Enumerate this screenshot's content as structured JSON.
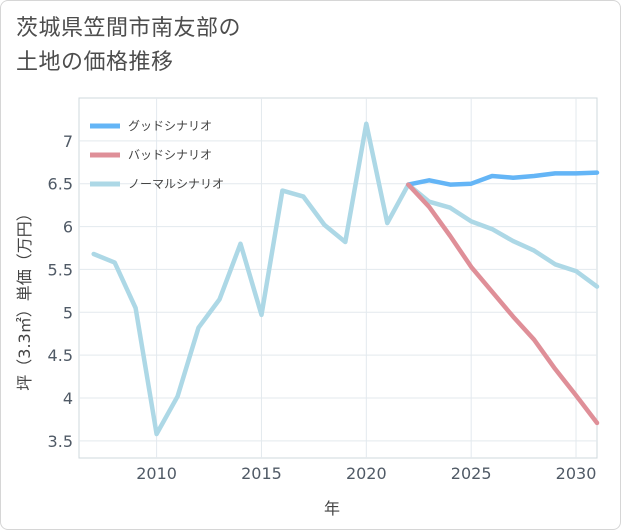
{
  "title_lines": [
    "茨城県笠間市南友部の",
    "土地の価格推移"
  ],
  "chart_data": {
    "type": "line",
    "xlabel": "年",
    "ylabel": "坪（3.3㎡）単価（万円）",
    "xlim": [
      2006.3,
      2031
    ],
    "ylim": [
      3.3,
      7.5
    ],
    "xticks": [
      2010,
      2015,
      2020,
      2025,
      2030
    ],
    "yticks": [
      3.5,
      4,
      4.5,
      5,
      5.5,
      6,
      6.5,
      7
    ],
    "ytick_labels": [
      "3.5",
      "4",
      "4.5",
      "5",
      "5.5",
      "6",
      "6.5",
      "7"
    ],
    "legend": [
      "グッドシナリオ",
      "バッドシナリオ",
      "ノーマルシナリオ"
    ],
    "series": [
      {
        "name": "ノーマルシナリオ",
        "color": "#add8e6",
        "x": [
          2007,
          2008,
          2009,
          2010,
          2011,
          2012,
          2013,
          2014,
          2015,
          2016,
          2017,
          2018,
          2019,
          2020,
          2021,
          2022,
          2023,
          2024,
          2025,
          2026,
          2027,
          2028,
          2029,
          2030,
          2031
        ],
        "values": [
          5.68,
          5.58,
          5.05,
          3.58,
          4.02,
          4.82,
          5.15,
          5.8,
          4.97,
          6.42,
          6.35,
          6.02,
          5.82,
          7.2,
          6.04,
          6.49,
          6.29,
          6.22,
          6.06,
          5.97,
          5.83,
          5.72,
          5.56,
          5.48,
          5.3
        ]
      },
      {
        "name": "グッドシナリオ",
        "color": "#64b5f6",
        "x": [
          2022,
          2023,
          2024,
          2025,
          2026,
          2027,
          2028,
          2029,
          2030,
          2031
        ],
        "values": [
          6.49,
          6.54,
          6.49,
          6.5,
          6.59,
          6.57,
          6.59,
          6.62,
          6.62,
          6.63
        ]
      },
      {
        "name": "バッドシナリオ",
        "color": "#df8f98",
        "x": [
          2022,
          2023,
          2024,
          2025,
          2026,
          2027,
          2028,
          2029,
          2030,
          2031
        ],
        "values": [
          6.49,
          6.23,
          5.89,
          5.53,
          5.24,
          4.95,
          4.68,
          4.34,
          4.03,
          3.71
        ]
      }
    ]
  }
}
